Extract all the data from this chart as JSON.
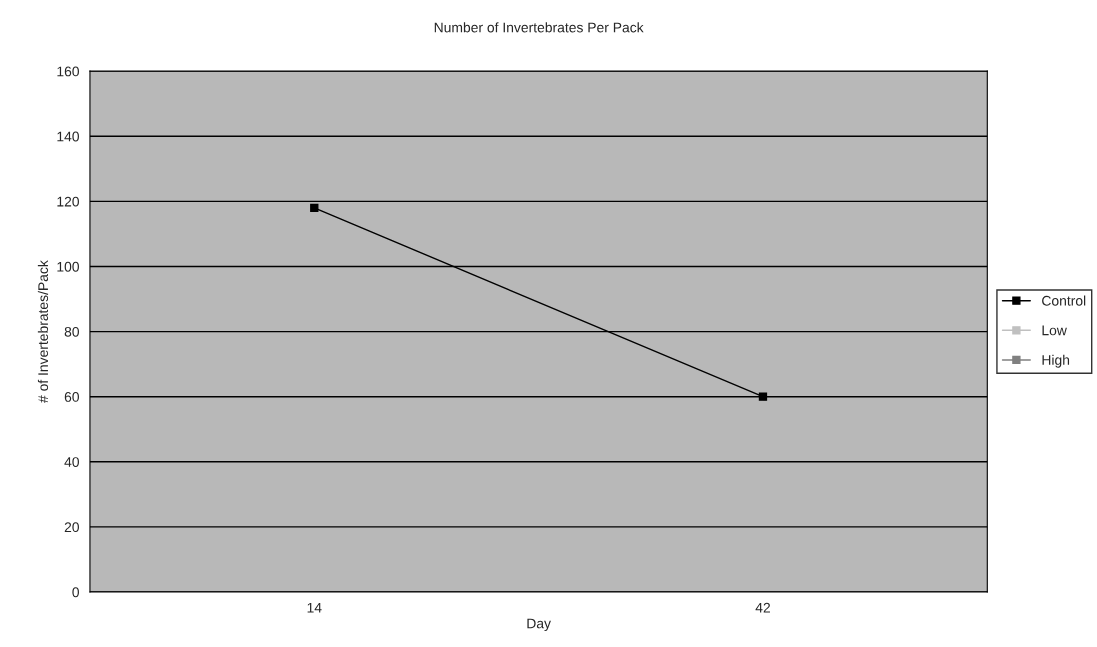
{
  "chart_data": {
    "type": "line",
    "title": "Number of Invertebrates Per Pack",
    "xlabel": "Day",
    "ylabel": "# of Invertebrates/Pack",
    "categories": [
      "14",
      "42"
    ],
    "series": [
      {
        "name": "Control",
        "color": "#000000",
        "values": [
          118,
          60
        ]
      },
      {
        "name": "Low",
        "color": "#c0c0c0",
        "values": [
          null,
          null
        ]
      },
      {
        "name": "High",
        "color": "#808080",
        "values": [
          null,
          null
        ]
      }
    ],
    "ylim": [
      0,
      160
    ],
    "yticks": [
      0,
      20,
      40,
      60,
      80,
      100,
      120,
      140,
      160
    ],
    "grid": "y",
    "legend": "right",
    "marker": "square"
  }
}
